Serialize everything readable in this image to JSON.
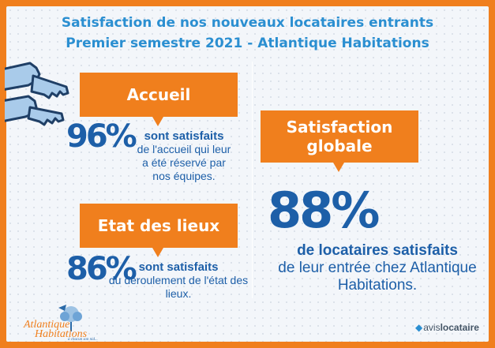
{
  "title": {
    "line1": "Satisfaction de nos nouveaux locataires entrants",
    "line2": "Premier semestre 2021 - Atlantique Habitations"
  },
  "accueil": {
    "heading": "Accueil",
    "percent": "96%",
    "bold": "sont satisfaits",
    "text": "de l'accueil qui leur a été réservé par nos équipes."
  },
  "etat": {
    "heading": "Etat des lieux",
    "percent": "86%",
    "bold": "sont satisfaits",
    "text": "du déroulement de l'état des lieux."
  },
  "globale": {
    "heading_line1": "Satisfaction",
    "heading_line2": "globale",
    "percent": "88%",
    "bold": "de locataires satisfaits",
    "text": "de leur entrée chez Atlantique Habitations."
  },
  "logo_left": {
    "line1": "Atlantique",
    "line2": "Habitations",
    "tagline": "à chacun son nid..."
  },
  "logo_right": {
    "prefix": "avis",
    "suffix": "locataire"
  },
  "colors": {
    "orange": "#f07f1d",
    "blue_title": "#2b8fd1",
    "blue_text": "#1d5fa8",
    "background": "#f3f6fa"
  }
}
